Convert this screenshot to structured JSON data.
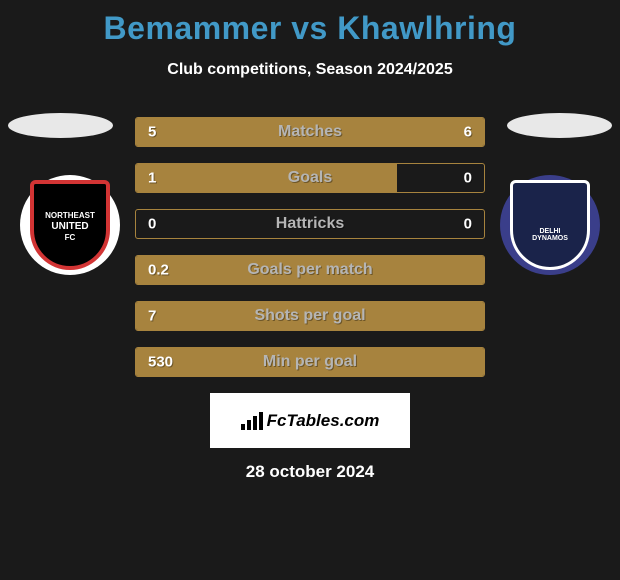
{
  "title": "Bemammer vs Khawlhring",
  "subtitle": "Club competitions, Season 2024/2025",
  "brand": "FcTables.com",
  "date": "28 october 2024",
  "colors": {
    "title": "#4199c7",
    "bar_fill": "#a7833e",
    "bar_border": "#a7833e",
    "bar_label": "#b5b5b5",
    "background": "#1a1a1a",
    "brand_box_bg": "#ffffff"
  },
  "badges": {
    "left": {
      "bg": "#ffffff",
      "shield_bg": "#000000",
      "border": "#d23434",
      "line1": "NORTHEAST",
      "line2": "UNITED",
      "line3": "FC"
    },
    "right": {
      "bg": "#3a3e8a",
      "shield_bg": "#1a234a",
      "border": "#ffffff",
      "line1": "DELHI",
      "line2": "DYNAMOS"
    }
  },
  "stats": [
    {
      "label": "Matches",
      "left_text": "5",
      "right_text": "6",
      "left_pct": 45.5,
      "right_pct": 54.5
    },
    {
      "label": "Goals",
      "left_text": "1",
      "right_text": "0",
      "left_pct": 75.0,
      "right_pct": 0.0
    },
    {
      "label": "Hattricks",
      "left_text": "0",
      "right_text": "0",
      "left_pct": 0.0,
      "right_pct": 0.0
    },
    {
      "label": "Goals per match",
      "left_text": "0.2",
      "right_text": "",
      "left_pct": 100.0,
      "right_pct": 0.0
    },
    {
      "label": "Shots per goal",
      "left_text": "7",
      "right_text": "",
      "left_pct": 100.0,
      "right_pct": 0.0
    },
    {
      "label": "Min per goal",
      "left_text": "530",
      "right_text": "",
      "left_pct": 100.0,
      "right_pct": 0.0
    }
  ]
}
